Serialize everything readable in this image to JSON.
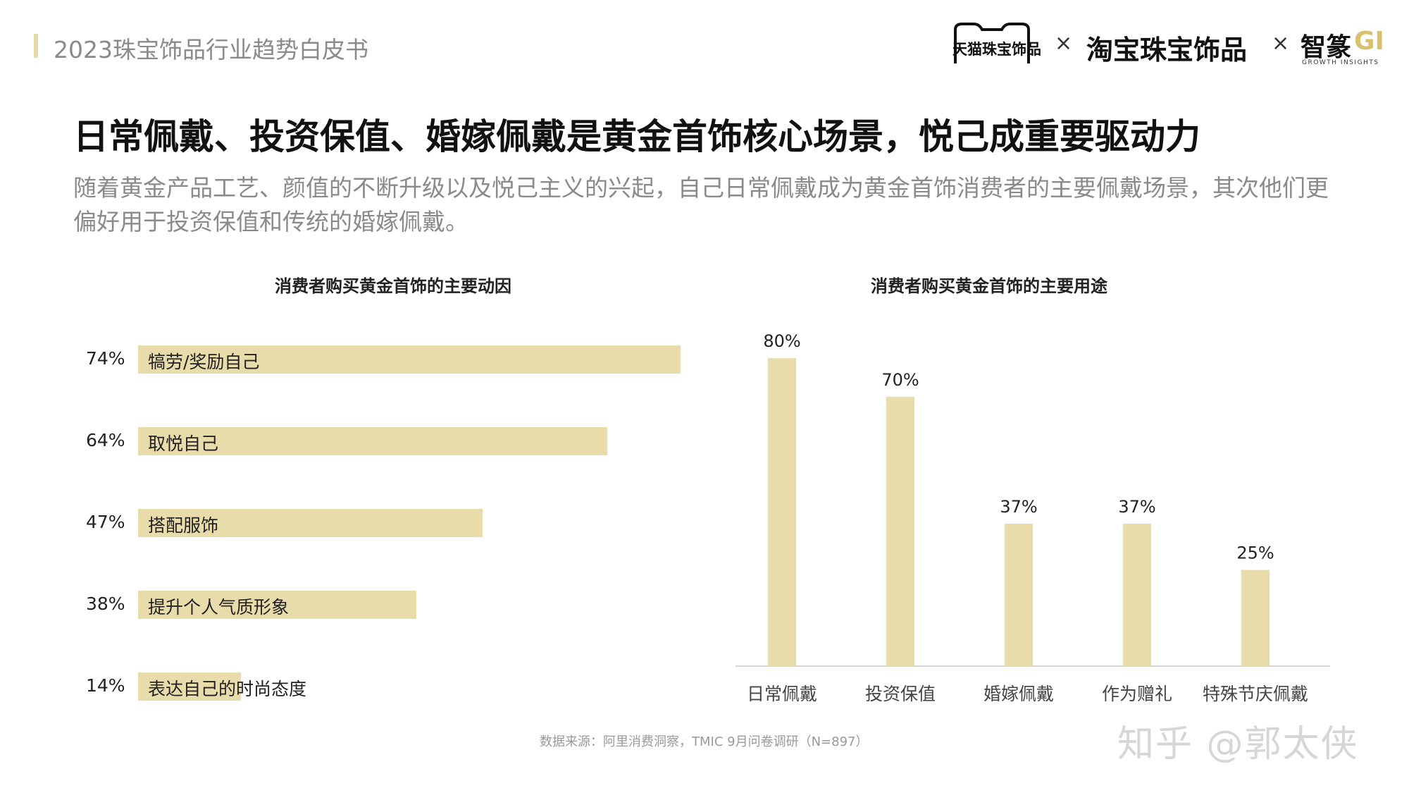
{
  "header": {
    "report_title": "2023珠宝饰品行业趋势白皮书",
    "brands": {
      "tmall": "天猫珠宝饰品",
      "x": "×",
      "taobao": "淘宝珠宝饰品",
      "zhizhuan": "智篆",
      "gi": "GI",
      "gi_sub": "GROWTH INSIGHTS"
    },
    "accent_color": "#e6d9a8"
  },
  "headline": "日常佩戴、投资保值、婚嫁佩戴是黄金首饰核心场景，悦己成重要驱动力",
  "subtext": "随着黄金产品工艺、颜值的不断升级以及悦己主义的兴起，自己日常佩戴成为黄金首饰消费者的主要佩戴场景，其次他们更偏好用于投资保值和传统的婚嫁佩戴。",
  "chart_data": [
    {
      "type": "bar",
      "orientation": "horizontal",
      "title": "消费者购买黄金首饰的主要动因",
      "categories": [
        "犒劳/奖励自己",
        "取悦自己",
        "搭配服饰",
        "提升个人气质形象",
        "表达自己的时尚态度"
      ],
      "values": [
        74,
        64,
        47,
        38,
        14
      ],
      "value_labels": [
        "74%",
        "64%",
        "47%",
        "38%",
        "14%"
      ],
      "unit": "%",
      "xlim": [
        0,
        100
      ],
      "bar_color": "#e8dcab",
      "grid": false
    },
    {
      "type": "bar",
      "orientation": "vertical",
      "title": "消费者购买黄金首饰的主要用途",
      "categories": [
        "日常佩戴",
        "投资保值",
        "婚嫁佩戴",
        "作为赠礼",
        "特殊节庆佩戴"
      ],
      "values": [
        80,
        70,
        37,
        37,
        25
      ],
      "value_labels": [
        "80%",
        "70%",
        "37%",
        "37%",
        "25%"
      ],
      "unit": "%",
      "ylim": [
        0,
        100
      ],
      "bar_color": "#e8dcab",
      "grid": false
    }
  ],
  "footer": {
    "source": "数据来源：阿里消费洞察，TMIC 9月问卷调研（N=897）",
    "watermark": "知乎 @郭太侠"
  }
}
